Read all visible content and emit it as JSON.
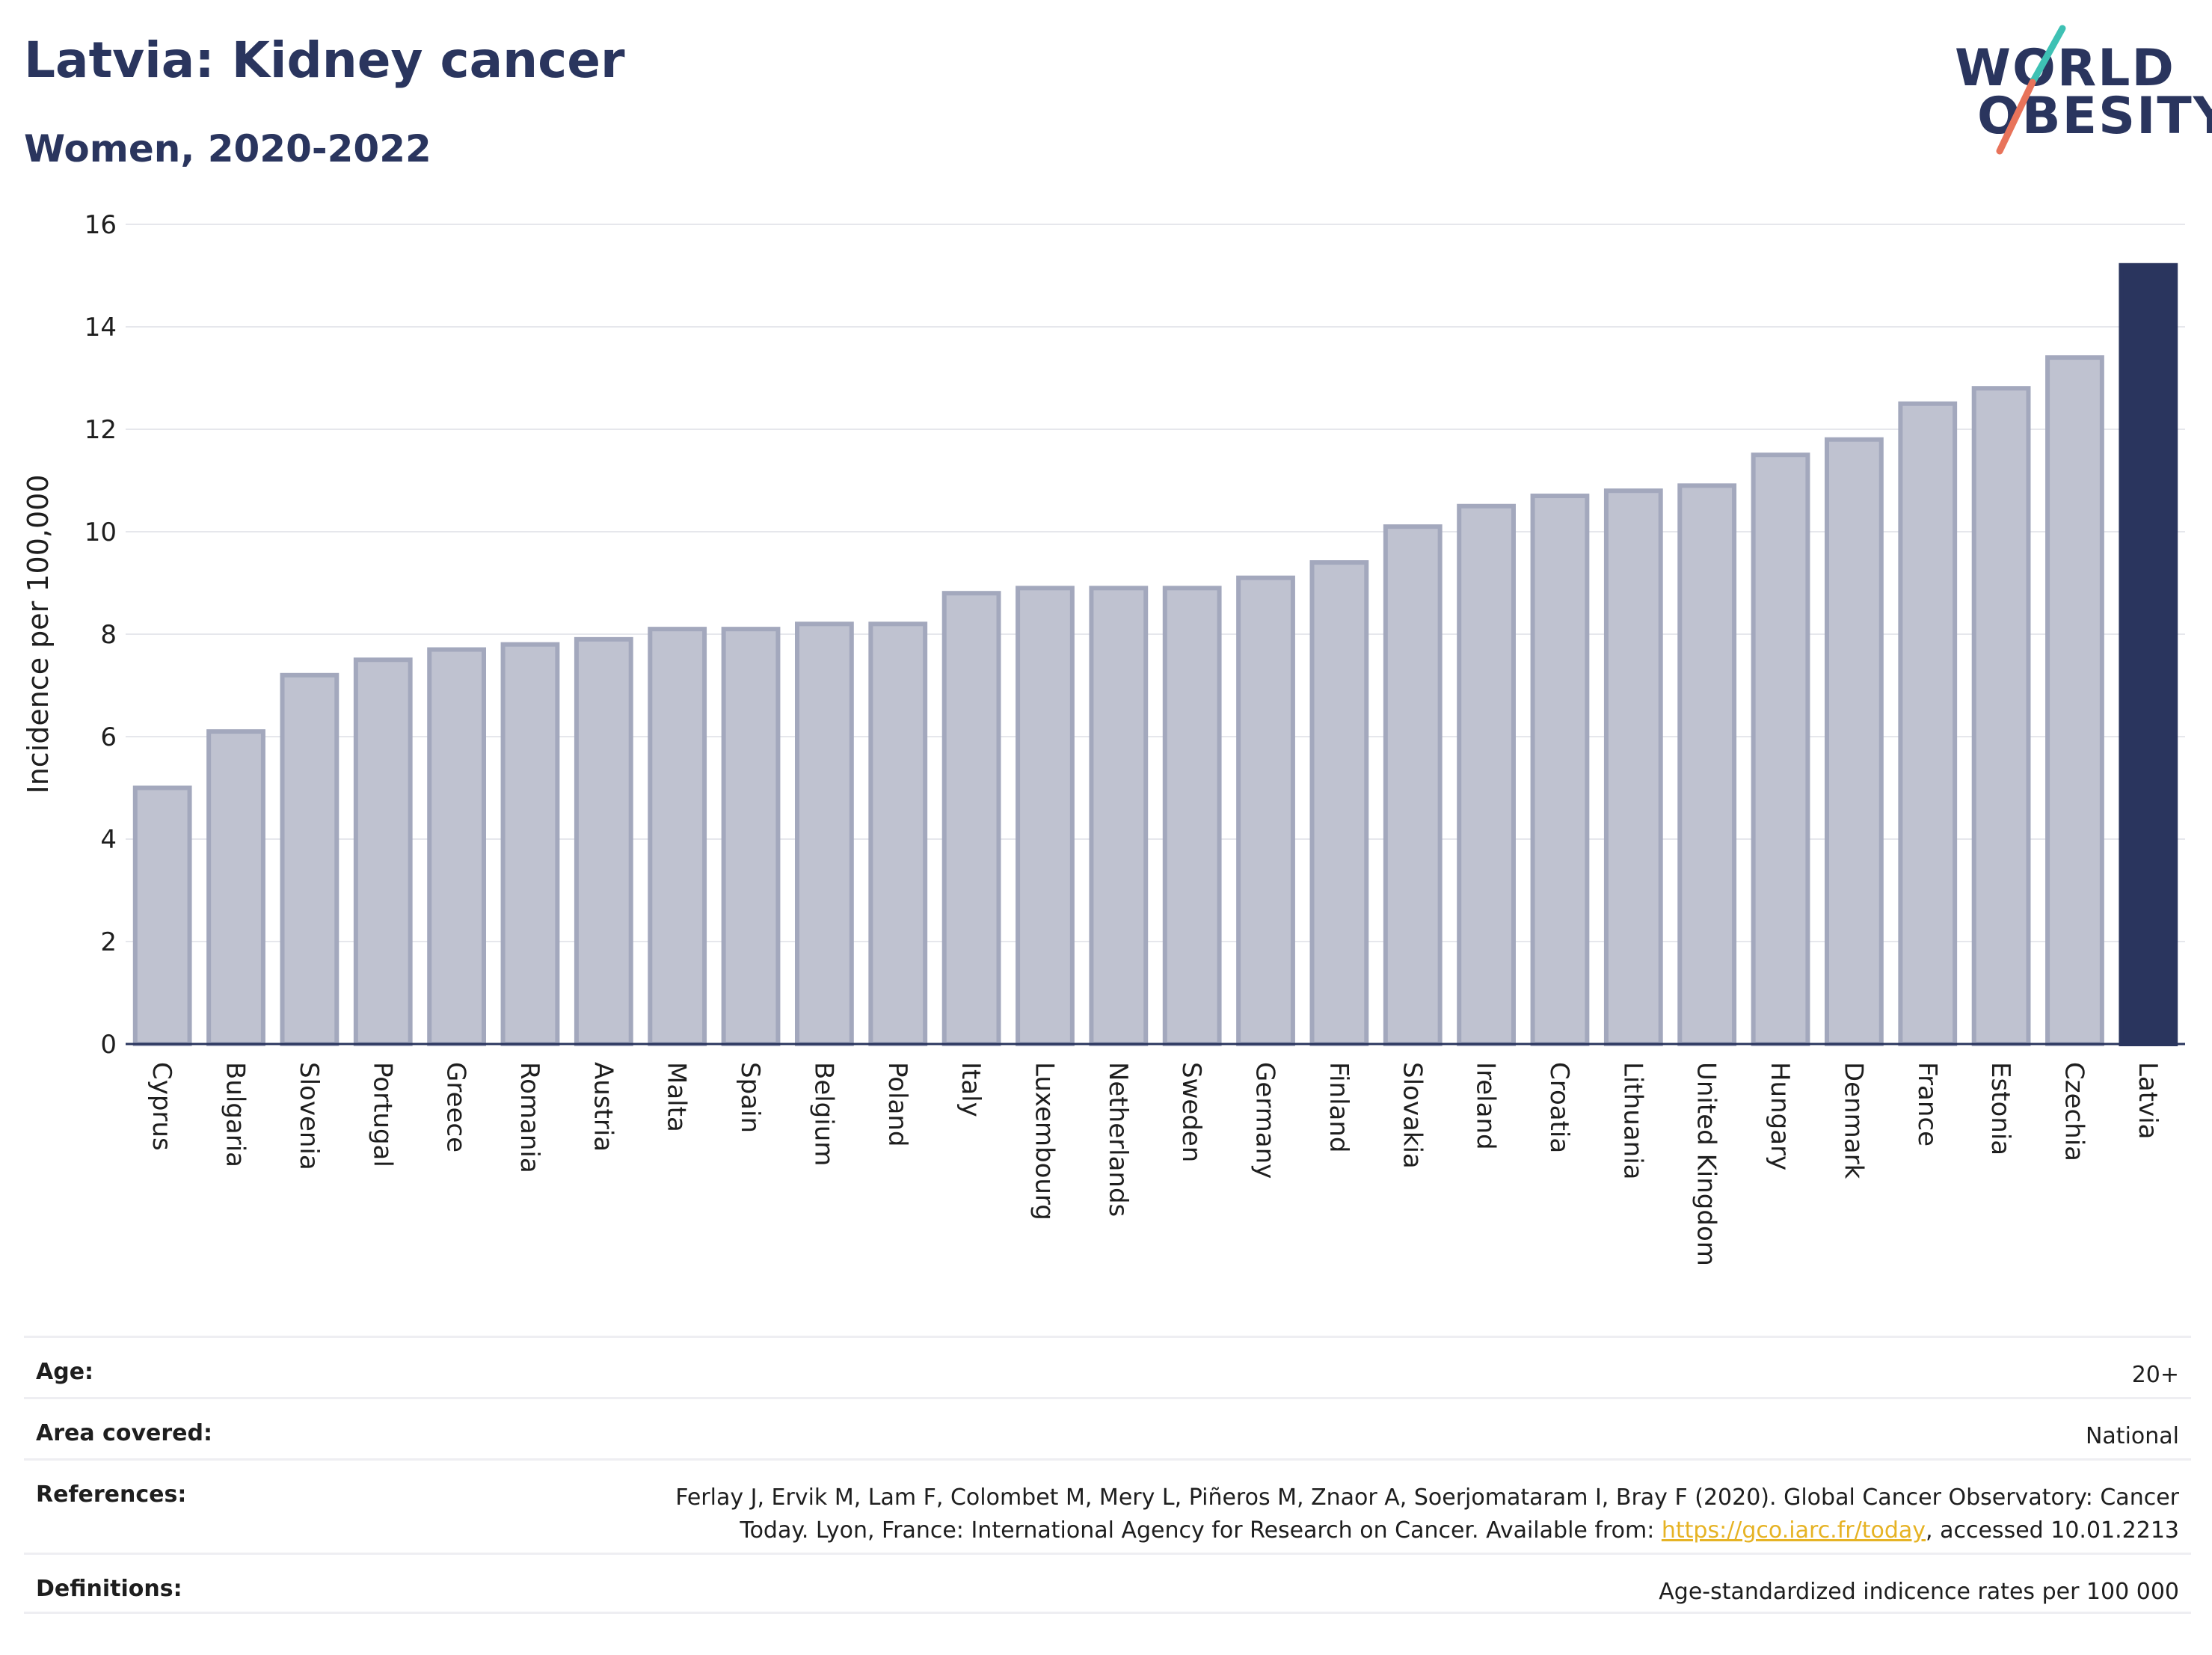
{
  "header": {
    "title": "Latvia: Kidney cancer",
    "subtitle": "Women, 2020-2022"
  },
  "logo": {
    "line1": "WORLD",
    "line2": "OBESITY",
    "slash_colors": [
      "#3ec1b4",
      "#e8735a"
    ]
  },
  "colors": {
    "bar_fill": "#bfc2d0",
    "bar_stroke": "#a3a8bd",
    "highlight_fill": "#2a355e",
    "grid": "#e6e7ec",
    "axis": "#2a355e"
  },
  "chart_data": {
    "type": "bar",
    "ylabel": "Incidence per 100,000",
    "ylim": [
      0,
      16
    ],
    "yticks": [
      0,
      2,
      4,
      6,
      8,
      10,
      12,
      14,
      16
    ],
    "grid": true,
    "highlight": "Latvia",
    "categories": [
      "Cyprus",
      "Bulgaria",
      "Slovenia",
      "Portugal",
      "Greece",
      "Romania",
      "Austria",
      "Malta",
      "Spain",
      "Belgium",
      "Poland",
      "Italy",
      "Luxembourg",
      "Netherlands",
      "Sweden",
      "Germany",
      "Finland",
      "Slovakia",
      "Ireland",
      "Croatia",
      "Lithuania",
      "United Kingdom",
      "Hungary",
      "Denmark",
      "France",
      "Estonia",
      "Czechia",
      "Latvia"
    ],
    "values": [
      5.0,
      6.1,
      7.2,
      7.5,
      7.7,
      7.8,
      7.9,
      8.1,
      8.1,
      8.2,
      8.2,
      8.8,
      8.9,
      8.9,
      8.9,
      9.1,
      9.4,
      10.1,
      10.5,
      10.7,
      10.8,
      10.9,
      11.5,
      11.8,
      12.5,
      12.8,
      13.4,
      15.2
    ]
  },
  "meta": {
    "age_label": "Age:",
    "age_value": "20+",
    "area_label": "Area covered:",
    "area_value": "National",
    "references_label": "References:",
    "references_line1": "Ferlay J, Ervik M, Lam F, Colombet M, Mery L, Piñeros M, Znaor A, Soerjomataram I, Bray F (2020). Global Cancer Observatory: Cancer",
    "references_line2_pre": "Today. Lyon, France: International Agency for Research on Cancer. Available from: ",
    "references_link": "https://gco.iarc.fr/today",
    "references_line2_post": ", accessed 10.01.2213",
    "definitions_label": "Definitions:",
    "definitions_value": "Age-standardized indicence rates per 100 000"
  }
}
